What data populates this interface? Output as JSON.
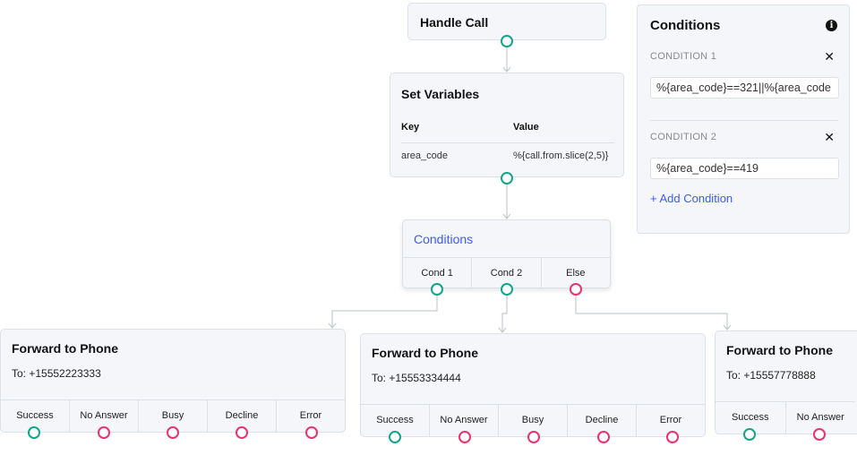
{
  "colors": {
    "success": "#14a38b",
    "failure": "#e8336d",
    "accent": "#3d5afe"
  },
  "handle_call": {
    "title": "Handle Call"
  },
  "set_variables": {
    "title": "Set Variables",
    "headers": [
      "Key",
      "Value"
    ],
    "rows": [
      {
        "key": "area_code",
        "value": "%{call.from.slice(2,5)}"
      }
    ]
  },
  "conditions_node": {
    "title": "Conditions",
    "outputs": [
      "Cond 1",
      "Cond 2",
      "Else"
    ]
  },
  "forwards": [
    {
      "title": "Forward to Phone",
      "to": "To: +15552223333",
      "outputs": [
        "Success",
        "No Answer",
        "Busy",
        "Decline",
        "Error"
      ]
    },
    {
      "title": "Forward to Phone",
      "to": "To: +15553334444",
      "outputs": [
        "Success",
        "No Answer",
        "Busy",
        "Decline",
        "Error"
      ]
    },
    {
      "title": "Forward to Phone",
      "to": "To: +15557778888",
      "outputs": [
        "Success",
        "No Answer"
      ]
    }
  ],
  "panel": {
    "title": "Conditions",
    "info_icon": "info-icon",
    "conditions": [
      {
        "label": "CONDITION 1",
        "value": "%{area_code}==321||%{area_code"
      },
      {
        "label": "CONDITION 2",
        "value": "%{area_code}==419"
      }
    ],
    "add_label": "+ Add Condition"
  }
}
